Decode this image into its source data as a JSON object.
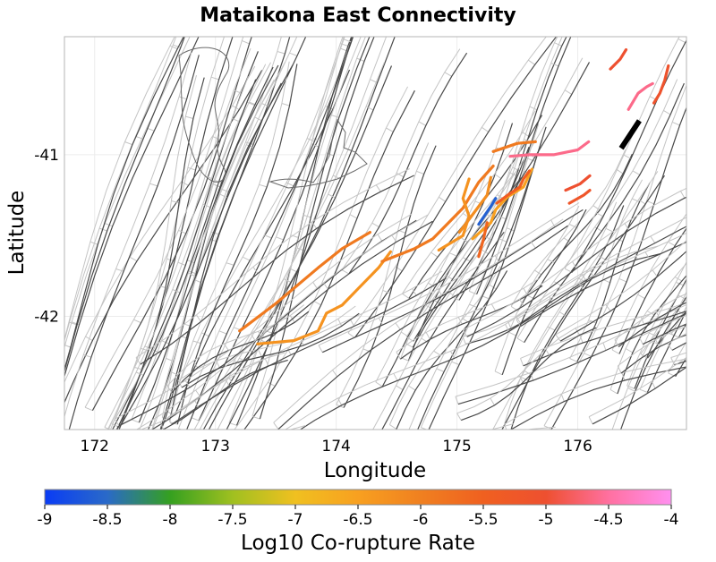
{
  "chart_data": {
    "type": "map",
    "title": "Mataikona East Connectivity",
    "xlabel": "Longitude",
    "ylabel": "Latitude",
    "xlim": [
      171.75,
      176.9
    ],
    "ylim": [
      -42.7,
      -40.27
    ],
    "x_ticks": [
      172,
      173,
      174,
      175,
      176
    ],
    "x_tick_labels": [
      "172",
      "173",
      "174",
      "175",
      "176"
    ],
    "y_ticks": [
      -41,
      -42
    ],
    "y_tick_labels": [
      "-41",
      "-42"
    ],
    "grid": true,
    "colorbar": {
      "label": "Log10 Co-rupture Rate",
      "range": [
        -9,
        -4
      ],
      "ticks": [
        -9,
        -8.5,
        -8,
        -7.5,
        -7,
        -6.5,
        -6,
        -5.5,
        -5,
        -4.5,
        -4
      ],
      "tick_labels": [
        "-9",
        "-8.5",
        "-8",
        "-7.5",
        "-7",
        "-6.5",
        "-6",
        "-5.5",
        "-5",
        "-4.5",
        "-4"
      ],
      "colors": [
        "#0a3cf5",
        "#2a6ac8",
        "#35a020",
        "#a0c020",
        "#f0c020",
        "#f8a020",
        "#f08020",
        "#f06020",
        "#ee5030",
        "#ff70a0",
        "#ff90f0"
      ]
    },
    "highlight_color": "#000000",
    "highlight": {
      "name": "Mataikona East",
      "coords": [
        [
          176.51,
          -40.79
        ],
        [
          176.36,
          -40.96
        ]
      ]
    },
    "ruptures": [
      {
        "value": -5.9,
        "coords": [
          [
            173.2,
            -42.09
          ],
          [
            173.5,
            -41.92
          ],
          [
            173.85,
            -41.7
          ],
          [
            174.05,
            -41.58
          ],
          [
            174.28,
            -41.48
          ]
        ]
      },
      {
        "value": -6.3,
        "coords": [
          [
            173.35,
            -42.17
          ],
          [
            173.65,
            -42.15
          ],
          [
            173.85,
            -42.09
          ],
          [
            173.92,
            -41.98
          ],
          [
            174.05,
            -41.93
          ],
          [
            174.18,
            -41.83
          ],
          [
            174.35,
            -41.7
          ],
          [
            174.45,
            -41.6
          ]
        ]
      },
      {
        "value": -5.9,
        "coords": [
          [
            174.38,
            -41.66
          ],
          [
            174.65,
            -41.58
          ],
          [
            174.8,
            -41.52
          ],
          [
            175.05,
            -41.33
          ],
          [
            175.18,
            -41.17
          ],
          [
            175.3,
            -41.07
          ]
        ]
      },
      {
        "value": -6.3,
        "coords": [
          [
            174.85,
            -41.59
          ],
          [
            175.05,
            -41.5
          ],
          [
            175.1,
            -41.38
          ],
          [
            175.05,
            -41.27
          ],
          [
            175.1,
            -41.15
          ]
        ]
      },
      {
        "value": -6.2,
        "coords": [
          [
            175.02,
            -41.48
          ],
          [
            175.12,
            -41.38
          ],
          [
            175.25,
            -41.25
          ],
          [
            175.28,
            -41.14
          ]
        ]
      },
      {
        "value": -6.5,
        "coords": [
          [
            175.13,
            -41.52
          ],
          [
            175.28,
            -41.42
          ],
          [
            175.32,
            -41.34
          ],
          [
            175.42,
            -41.26
          ],
          [
            175.55,
            -41.2
          ],
          [
            175.62,
            -41.09
          ]
        ]
      },
      {
        "value": -8.6,
        "coords": [
          [
            175.18,
            -41.43
          ],
          [
            175.28,
            -41.32
          ],
          [
            175.32,
            -41.27
          ]
        ]
      },
      {
        "value": -5.4,
        "coords": [
          [
            175.33,
            -41.3
          ],
          [
            175.42,
            -41.25
          ],
          [
            175.52,
            -41.2
          ],
          [
            175.55,
            -41.15
          ],
          [
            175.6,
            -41.1
          ]
        ]
      },
      {
        "value": -5.6,
        "coords": [
          [
            175.18,
            -41.63
          ],
          [
            175.22,
            -41.52
          ],
          [
            175.25,
            -41.42
          ]
        ]
      },
      {
        "value": -5.9,
        "coords": [
          [
            175.3,
            -40.98
          ],
          [
            175.5,
            -40.93
          ],
          [
            175.65,
            -40.92
          ]
        ]
      },
      {
        "value": -4.6,
        "coords": [
          [
            175.44,
            -41.01
          ],
          [
            175.6,
            -41.0
          ],
          [
            175.8,
            -41.0
          ],
          [
            176.0,
            -40.97
          ],
          [
            176.09,
            -40.92
          ]
        ]
      },
      {
        "value": -5.0,
        "coords": [
          [
            175.9,
            -41.22
          ],
          [
            176.02,
            -41.18
          ],
          [
            176.1,
            -41.13
          ]
        ]
      },
      {
        "value": -5.2,
        "coords": [
          [
            175.93,
            -41.3
          ],
          [
            176.05,
            -41.25
          ],
          [
            176.1,
            -41.22
          ]
        ]
      },
      {
        "value": -5.0,
        "coords": [
          [
            176.27,
            -40.47
          ],
          [
            176.35,
            -40.41
          ],
          [
            176.4,
            -40.35
          ]
        ]
      },
      {
        "value": -4.6,
        "coords": [
          [
            176.42,
            -40.72
          ],
          [
            176.5,
            -40.62
          ],
          [
            176.57,
            -40.58
          ],
          [
            176.62,
            -40.56
          ]
        ]
      },
      {
        "value": -5.1,
        "coords": [
          [
            176.63,
            -40.68
          ],
          [
            176.68,
            -40.62
          ],
          [
            176.72,
            -40.54
          ],
          [
            176.75,
            -40.45
          ]
        ]
      }
    ]
  }
}
